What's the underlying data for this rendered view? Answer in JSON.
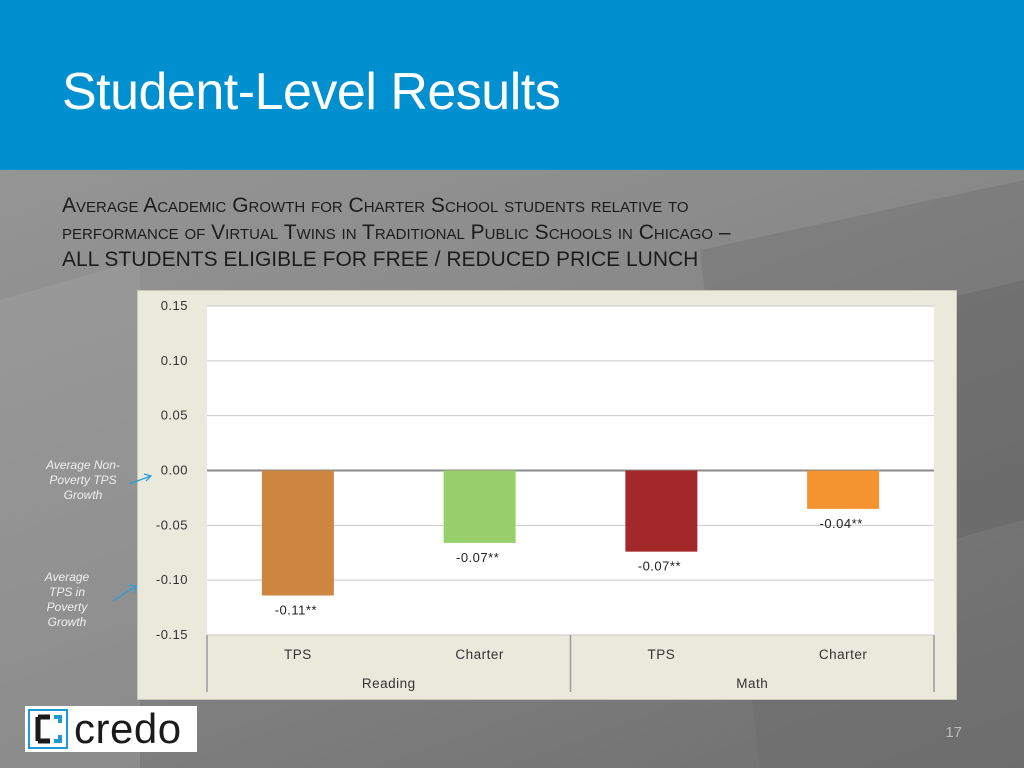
{
  "slide": {
    "title": "Student-Level Results",
    "subtitle_lines": [
      "Average Academic Growth for Charter School students relative to",
      "performance of Virtual Twins in Traditional Public Schools in Chicago –",
      "ALL STUDENTS ELIGIBLE FOR FREE / REDUCED PRICE LUNCH"
    ],
    "notes": {
      "non_poverty": "Average Non-Poverty TPS Growth",
      "poverty": "Average TPS in Poverty Growth"
    },
    "logo_text": "credo",
    "page_number": "17",
    "colors": {
      "header": "#0090d0",
      "panel": "#e9e9dc",
      "arrow": "#2aa0d8"
    }
  },
  "chart_data": {
    "type": "bar",
    "title": "",
    "xlabel": "",
    "ylabel": "",
    "ylim": [
      -0.15,
      0.15
    ],
    "yticks": [
      "0.15",
      "0.10",
      "0.05",
      "0.00",
      "-0.05",
      "-0.10",
      "-0.15"
    ],
    "ytick_values": [
      0.15,
      0.1,
      0.05,
      0.0,
      -0.05,
      -0.1,
      -0.15
    ],
    "groups": [
      {
        "name": "Reading",
        "categories": [
          "TPS",
          "Charter"
        ]
      },
      {
        "name": "Math",
        "categories": [
          "TPS",
          "Charter"
        ]
      }
    ],
    "categories": [
      "TPS",
      "Charter",
      "TPS",
      "Charter"
    ],
    "values": [
      -0.114,
      -0.066,
      -0.074,
      -0.035
    ],
    "labels": [
      "-0.11**",
      "-0.07**",
      "-0.07**",
      "-0.04**"
    ],
    "colors": [
      "#cd853f",
      "#97d06b",
      "#a3282a",
      "#f39430"
    ],
    "grid": true
  }
}
